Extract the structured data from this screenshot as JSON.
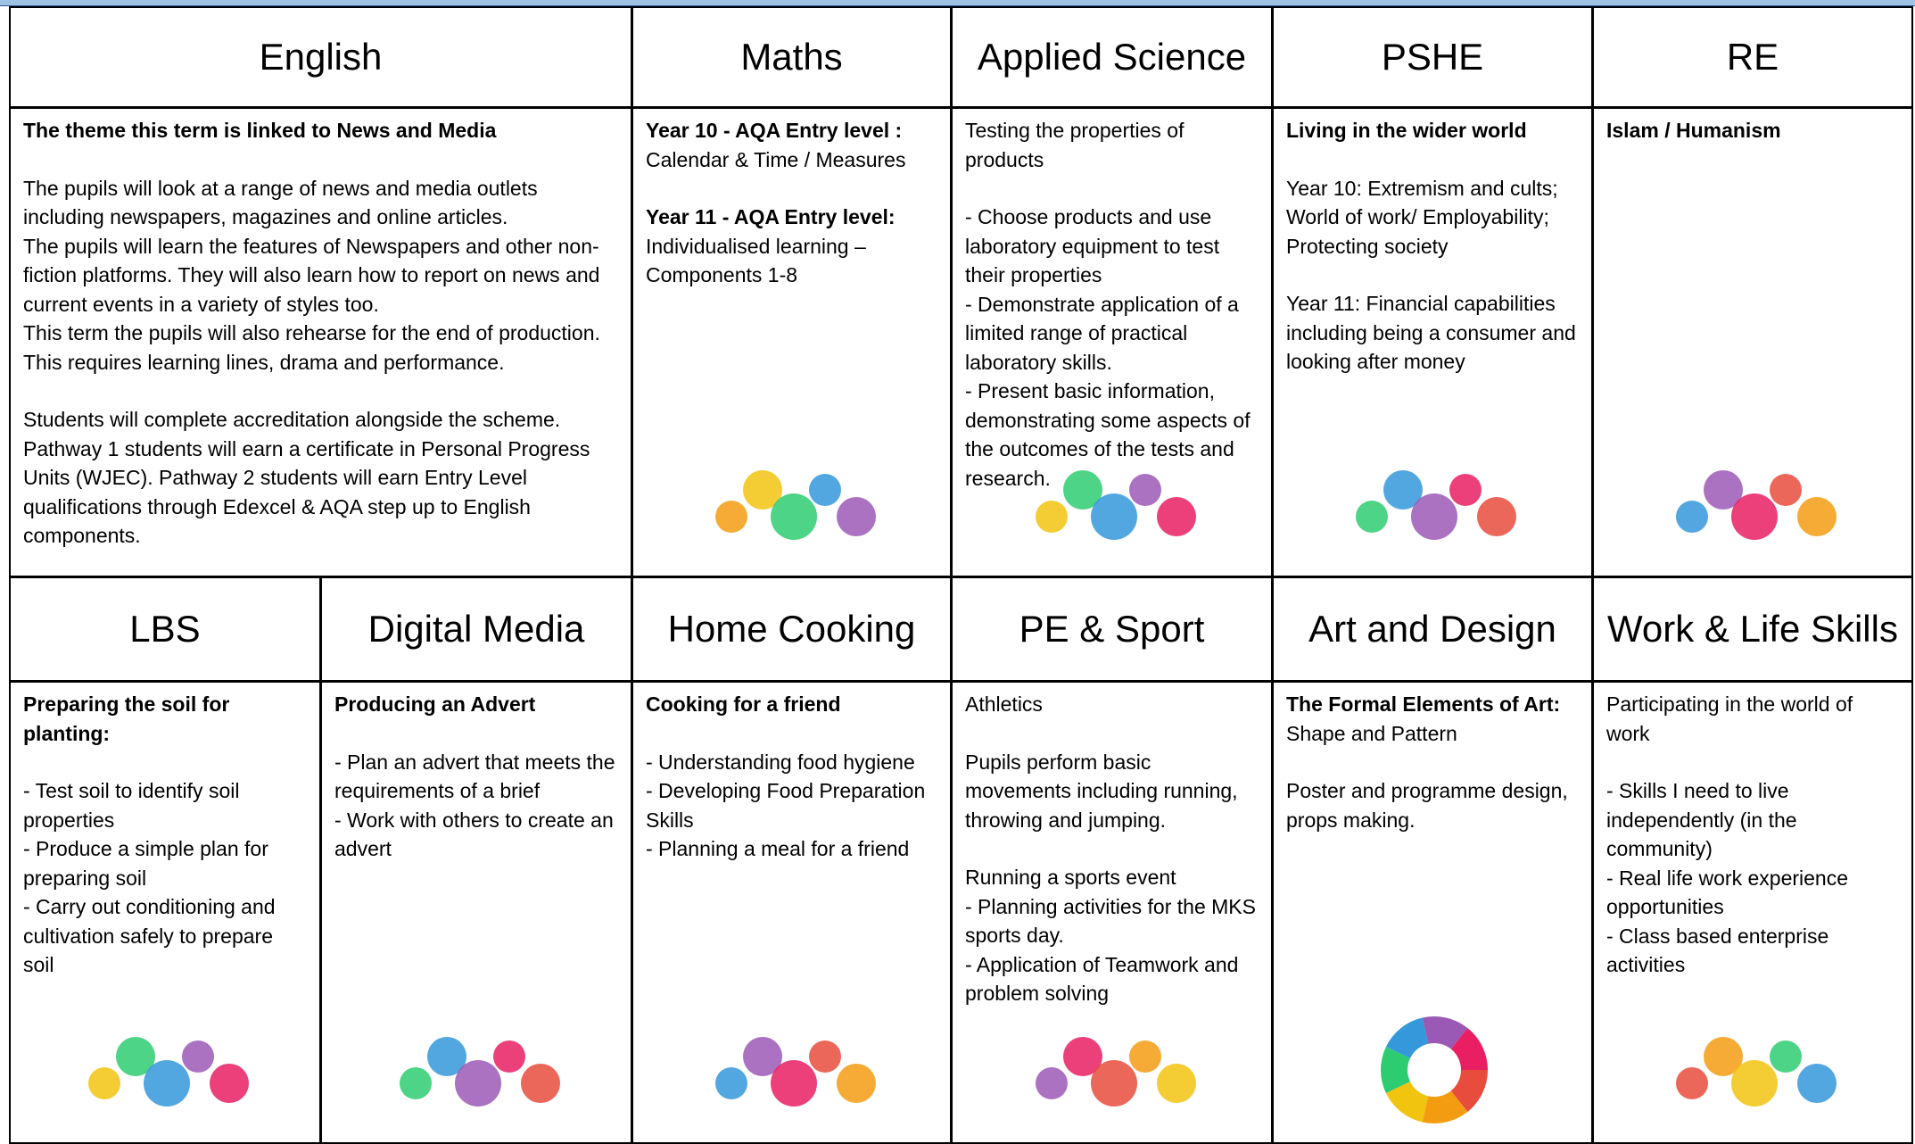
{
  "rows": [
    {
      "cells": [
        {
          "heading": "English",
          "paragraphs": [
            {
              "bold": "The theme this term is linked to News and Media"
            },
            {
              "lines": [
                "The pupils will look at a range of news and media outlets including newspapers, magazines and online articles.",
                "The pupils will learn the features of Newspapers and other non-fiction platforms. They will also learn how to report on news and current events in a variety of styles too.",
                "This term the pupils will also rehearse for the end of production. This requires learning lines, drama and performance."
              ]
            },
            {
              "lines": [
                "Students will complete accreditation alongside the scheme. Pathway 1 students will earn a certificate in Personal Progress Units (WJEC). Pathway 2 students will earn Entry Level qualifications through Edexcel & AQA step up to English components."
              ]
            }
          ]
        },
        {
          "heading": "Maths",
          "paragraphs": [
            {
              "bold": "Year 10 - AQA Entry level :",
              "lines": [
                "Calendar & Time / Measures"
              ]
            },
            {
              "bold": "Year 11 - AQA Entry level:",
              "lines": [
                "Individualised learning – Components 1-8"
              ]
            }
          ]
        },
        {
          "heading": "Applied Science",
          "paragraphs": [
            {
              "text": "Testing the properties of products"
            },
            {
              "lines": [
                "- Choose products and use laboratory equipment to test their properties",
                "- Demonstrate application of a limited range of practical laboratory skills.",
                "- Present basic information, demonstrating some aspects of the outcomes of the tests and research."
              ]
            }
          ]
        },
        {
          "heading": "PSHE",
          "paragraphs": [
            {
              "bold": "Living in the wider world"
            },
            {
              "lines": [
                "Year 10: Extremism and cults; World of work/ Employability; Protecting society"
              ]
            },
            {
              "lines": [
                "Year 11: Financial capabilities including being a consumer and looking after money"
              ]
            }
          ]
        },
        {
          "heading": "RE",
          "paragraphs": [
            {
              "bold": "Islam / Humanism"
            }
          ]
        }
      ]
    },
    {
      "cells": [
        {
          "heading": "LBS",
          "paragraphs": [
            {
              "bold": "Preparing the soil for planting:"
            },
            {
              "lines": [
                "- Test soil to identify soil properties",
                "- Produce a simple plan for preparing soil",
                "- Carry out conditioning and cultivation safely to prepare soil"
              ]
            }
          ]
        },
        {
          "heading": "Digital Media",
          "paragraphs": [
            {
              "bold": "Producing an Advert"
            },
            {
              "lines": [
                "- Plan an advert that meets the requirements of a brief",
                "- Work with others to create an advert"
              ]
            }
          ]
        },
        {
          "heading": "Home Cooking",
          "paragraphs": [
            {
              "bold": "Cooking for a friend"
            },
            {
              "lines": [
                "- Understanding food hygiene",
                "- Developing Food Preparation Skills",
                "- Planning a meal for a friend"
              ]
            }
          ]
        },
        {
          "heading": "PE & Sport",
          "paragraphs": [
            {
              "text": "Athletics"
            },
            {
              "lines": [
                "Pupils perform basic movements including running, throwing and jumping."
              ]
            },
            {
              "lines": [
                "Running a sports event",
                "- Planning activities for the MKS sports day.",
                "- Application of Teamwork and problem solving"
              ]
            }
          ]
        },
        {
          "heading": "Art and Design",
          "paragraphs": [
            {
              "bold": "The Formal Elements of Art:",
              "text": "Shape and Pattern"
            },
            {
              "lines": [
                "Poster and programme design, props making."
              ]
            }
          ]
        },
        {
          "heading": "Work & Life Skills",
          "paragraphs": [
            {
              "text": "Participating in the world of work"
            },
            {
              "lines": [
                "- Skills I need to live independently (in the community)",
                "- Real life work experience opportunities",
                "- Class based enterprise activities"
              ]
            }
          ]
        }
      ]
    }
  ]
}
